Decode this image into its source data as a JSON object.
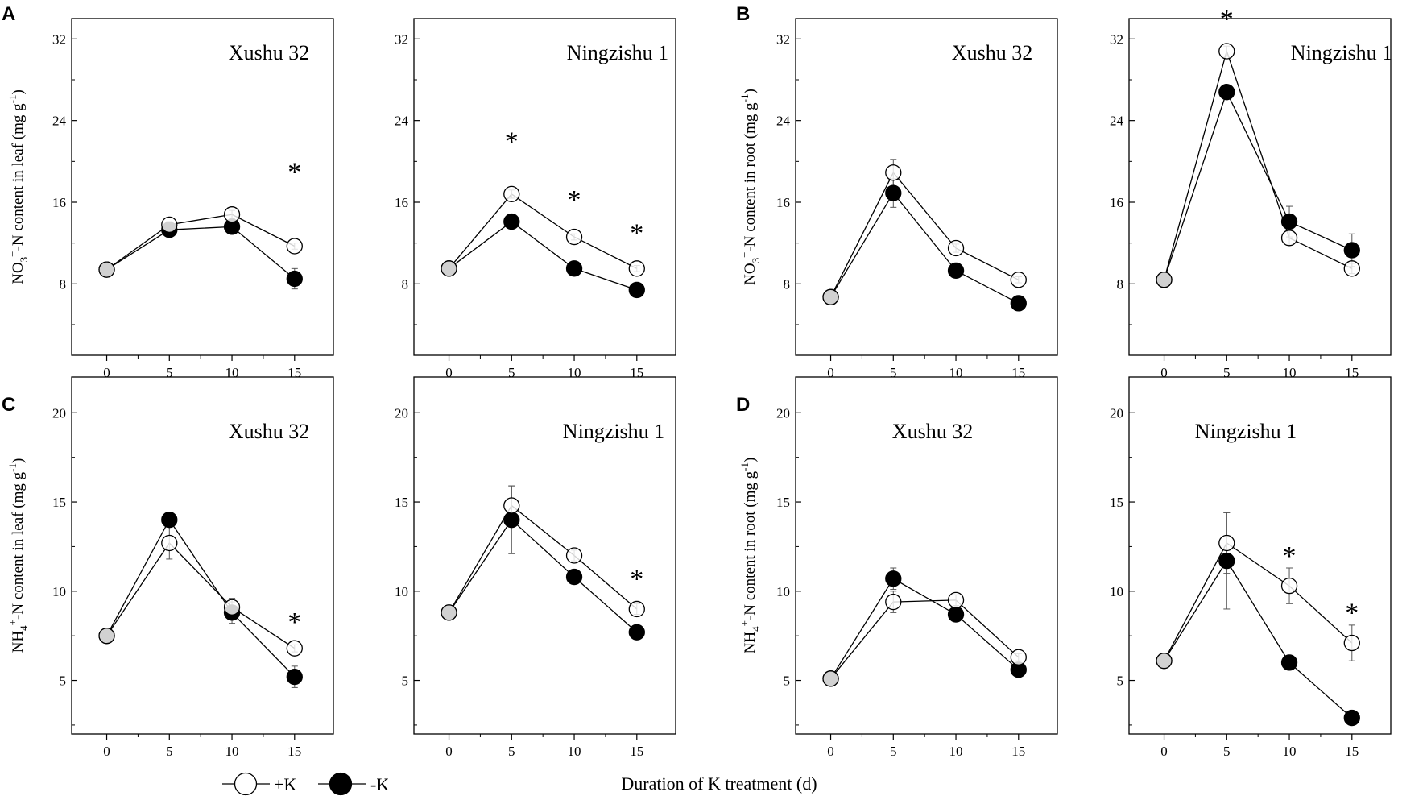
{
  "chart_data": {
    "type": "line",
    "x_title": "Duration of K treatment (d)",
    "legend": [
      {
        "name": "+K",
        "marker": "open-circle"
      },
      {
        "name": "-K",
        "marker": "filled-circle"
      }
    ],
    "groups": [
      {
        "letter": "A",
        "ylabel": {
          "prefix": "NO",
          "sub": "3",
          "sup": "−",
          "rest": "-N content in leaf (mg g",
          "exp": "-1",
          "close": ")"
        },
        "ylim": [
          1,
          34
        ],
        "yticks": [
          8,
          16,
          24,
          32
        ],
        "panels": [
          {
            "cultivar": "Xushu 32",
            "x": [
              0,
              5,
              10,
              15
            ],
            "series": [
              {
                "name": "+K",
                "values": [
                  9.4,
                  13.8,
                  14.8,
                  11.7
                ],
                "err": [
                  0.3,
                  0.3,
                  0.4,
                  0.3
                ]
              },
              {
                "name": "-K",
                "values": [
                  9.4,
                  13.3,
                  13.6,
                  8.5
                ],
                "err": [
                  0.3,
                  0.4,
                  0.5,
                  1.0
                ]
              }
            ],
            "stars": [
              {
                "x": 15,
                "y": 19.5
              }
            ]
          },
          {
            "cultivar": "Ningzishu 1",
            "x": [
              0,
              5,
              10,
              15
            ],
            "series": [
              {
                "name": "+K",
                "values": [
                  9.5,
                  16.8,
                  12.6,
                  9.5
                ],
                "err": [
                  0.6,
                  0.4,
                  0.3,
                  0.3
                ]
              },
              {
                "name": "-K",
                "values": [
                  9.5,
                  14.1,
                  9.5,
                  7.4
                ],
                "err": [
                  0.6,
                  0.3,
                  0.3,
                  0.3
                ]
              }
            ],
            "stars": [
              {
                "x": 5,
                "y": 22.5
              },
              {
                "x": 10,
                "y": 16.8
              },
              {
                "x": 15,
                "y": 13.5
              }
            ]
          }
        ]
      },
      {
        "letter": "B",
        "ylabel": {
          "prefix": "NO",
          "sub": "3",
          "sup": "−",
          "rest": "-N content in root (mg g",
          "exp": "-1",
          "close": ")"
        },
        "ylim": [
          1,
          34
        ],
        "yticks": [
          8,
          16,
          24,
          32
        ],
        "panels": [
          {
            "cultivar": "Xushu 32",
            "x": [
              0,
              5,
              10,
              15
            ],
            "series": [
              {
                "name": "+K",
                "values": [
                  6.7,
                  18.9,
                  11.5,
                  8.4
                ],
                "err": [
                  0.3,
                  1.3,
                  0.4,
                  0.3
                ]
              },
              {
                "name": "-K",
                "values": [
                  6.7,
                  16.9,
                  9.3,
                  6.1
                ],
                "err": [
                  0.3,
                  1.4,
                  0.3,
                  0.3
                ]
              }
            ],
            "stars": []
          },
          {
            "cultivar": "Ningzishu 1",
            "x": [
              0,
              5,
              10,
              15
            ],
            "series": [
              {
                "name": "+K",
                "values": [
                  8.4,
                  30.8,
                  12.5,
                  9.5
                ],
                "err": [
                  0.3,
                  0.5,
                  0.7,
                  0.5
                ]
              },
              {
                "name": "-K",
                "values": [
                  8.4,
                  26.8,
                  14.1,
                  11.3
                ],
                "err": [
                  0.3,
                  0.3,
                  1.5,
                  1.6
                ]
              }
            ],
            "stars": [
              {
                "x": 5,
                "y": 34.5
              }
            ]
          }
        ]
      },
      {
        "letter": "C",
        "ylabel": {
          "prefix": "NH",
          "sub": "4",
          "sup": "+",
          "rest": "-N content in leaf (mg g",
          "exp": "-1",
          "close": ")"
        },
        "ylim": [
          2,
          22
        ],
        "yticks": [
          5,
          10,
          15,
          20
        ],
        "panels": [
          {
            "cultivar": "Xushu 32",
            "x": [
              0,
              5,
              10,
              15
            ],
            "series": [
              {
                "name": "+K",
                "values": [
                  7.5,
                  12.7,
                  9.1,
                  6.8
                ],
                "err": [
                  0.2,
                  0.9,
                  0.5,
                  0.2
                ]
              },
              {
                "name": "-K",
                "values": [
                  7.5,
                  14.0,
                  8.8,
                  5.2
                ],
                "err": [
                  0.4,
                  0.3,
                  0.6,
                  0.6
                ]
              }
            ],
            "stars": [
              {
                "x": 15,
                "y": 8.6
              }
            ]
          },
          {
            "cultivar": "Ningzishu 1",
            "x": [
              0,
              5,
              10,
              15
            ],
            "series": [
              {
                "name": "+K",
                "values": [
                  8.8,
                  14.8,
                  12.0,
                  9.0
                ],
                "err": [
                  0.2,
                  1.1,
                  0.3,
                  0.3
                ]
              },
              {
                "name": "-K",
                "values": [
                  8.8,
                  14.0,
                  10.8,
                  7.7
                ],
                "err": [
                  0.2,
                  1.9,
                  0.2,
                  0.2
                ]
              }
            ],
            "stars": [
              {
                "x": 15,
                "y": 11.0
              }
            ]
          }
        ]
      },
      {
        "letter": "D",
        "ylabel": {
          "prefix": "NH",
          "sub": "4",
          "sup": "+",
          "rest": "-N content in root (mg g",
          "exp": "-1",
          "close": ")"
        },
        "ylim": [
          2,
          22
        ],
        "yticks": [
          5,
          10,
          15,
          20
        ],
        "panels": [
          {
            "cultivar": "Xushu 32",
            "x": [
              0,
              5,
              10,
              15
            ],
            "series": [
              {
                "name": "+K",
                "values": [
                  5.1,
                  9.4,
                  9.5,
                  6.3
                ],
                "err": [
                  0.4,
                  0.6,
                  0.3,
                  0.2
                ]
              },
              {
                "name": "-K",
                "values": [
                  5.1,
                  10.7,
                  8.7,
                  5.6
                ],
                "err": [
                  0.4,
                  0.6,
                  0.2,
                  0.2
                ]
              }
            ],
            "stars": []
          },
          {
            "cultivar": "Ningzishu 1",
            "x": [
              0,
              5,
              10,
              15
            ],
            "series": [
              {
                "name": "+K",
                "values": [
                  6.1,
                  12.7,
                  10.3,
                  7.1
                ],
                "err": [
                  0.3,
                  1.7,
                  1.0,
                  1.0
                ]
              },
              {
                "name": "-K",
                "values": [
                  6.1,
                  11.7,
                  6.0,
                  2.9
                ],
                "err": [
                  0.3,
                  2.7,
                  0.2,
                  0.2
                ]
              }
            ],
            "stars": [
              {
                "x": 10,
                "y": 12.3
              },
              {
                "x": 15,
                "y": 9.1
              }
            ]
          }
        ]
      }
    ]
  }
}
